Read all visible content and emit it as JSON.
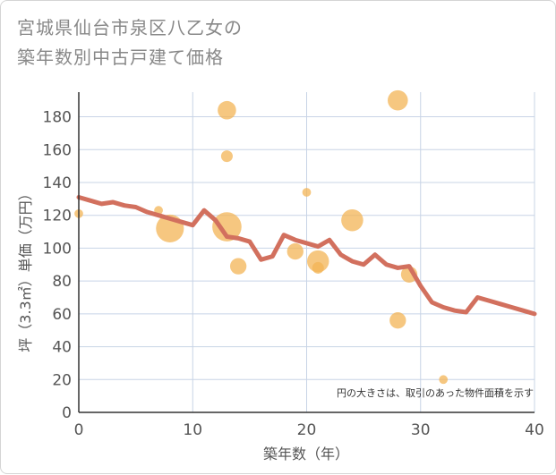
{
  "title_lines": [
    "宮城県仙台市泉区八乙女の",
    "築年数別中古戸建て価格"
  ],
  "chart_data": {
    "type": "scatter+line",
    "title": "宮城県仙台市泉区八乙女の築年数別中古戸建て価格",
    "xlabel": "築年数（年）",
    "ylabel": "坪（3.3㎡）単価（万円）",
    "xlim": [
      0,
      40
    ],
    "ylim": [
      0,
      195
    ],
    "xticks": [
      0,
      10,
      20,
      30,
      40
    ],
    "yticks": [
      0,
      20,
      40,
      60,
      80,
      100,
      120,
      140,
      160,
      180
    ],
    "grid": true,
    "note": "円の大きさは、取引のあった物件面積を示す",
    "colors": {
      "bubble": "#f3b456",
      "line": "#d2705e",
      "grid": "#c8d4e6",
      "axis": "#333333"
    },
    "bubbles": [
      {
        "x": 0,
        "y": 121,
        "size": 1
      },
      {
        "x": 7,
        "y": 123,
        "size": 1
      },
      {
        "x": 8,
        "y": 112,
        "size": 6
      },
      {
        "x": 13,
        "y": 184,
        "size": 3
      },
      {
        "x": 13,
        "y": 156,
        "size": 1.5
      },
      {
        "x": 13,
        "y": 113,
        "size": 6.5
      },
      {
        "x": 14,
        "y": 89,
        "size": 2.5
      },
      {
        "x": 19,
        "y": 98,
        "size": 2.5
      },
      {
        "x": 20,
        "y": 134,
        "size": 1
      },
      {
        "x": 21,
        "y": 92,
        "size": 4
      },
      {
        "x": 21,
        "y": 88,
        "size": 1.5
      },
      {
        "x": 24,
        "y": 117,
        "size": 4
      },
      {
        "x": 28,
        "y": 190,
        "size": 3.5
      },
      {
        "x": 28,
        "y": 56,
        "size": 2.5
      },
      {
        "x": 29,
        "y": 84,
        "size": 2.5
      },
      {
        "x": 32,
        "y": 20,
        "size": 1
      }
    ],
    "trend": {
      "x": [
        0,
        1,
        2,
        3,
        4,
        5,
        6,
        7,
        8,
        9,
        10,
        11,
        12,
        13,
        14,
        15,
        16,
        17,
        18,
        19,
        20,
        21,
        22,
        23,
        24,
        25,
        26,
        27,
        28,
        29,
        30,
        31,
        32,
        33,
        34,
        35,
        36,
        37,
        38,
        39,
        40
      ],
      "y": [
        131,
        129,
        127,
        128,
        126,
        125,
        122,
        120,
        118,
        116,
        114,
        123,
        117,
        107,
        106,
        104,
        93,
        95,
        108,
        105,
        103,
        101,
        105,
        96,
        92,
        90,
        96,
        90,
        88,
        89,
        77,
        67,
        64,
        62,
        61,
        70,
        68,
        66,
        64,
        62,
        60
      ]
    }
  }
}
